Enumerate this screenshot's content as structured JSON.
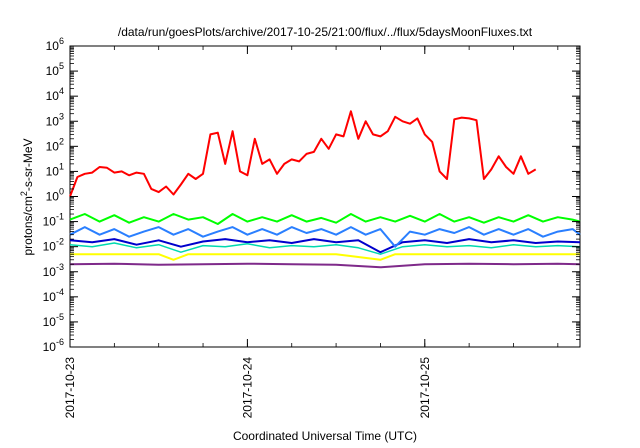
{
  "chart_data": {
    "type": "line",
    "title": "/data/run/goesPlots/archive/2017-10-25/21:00/flux/../flux/5daysMoonFluxes.txt",
    "xlabel": "Coordinated Universal Time (UTC)",
    "ylabel": {
      "prefix": "protons/cm",
      "sup": "2",
      "suffix": "-s-sr-MeV"
    },
    "x_scale": "time",
    "y_scale": "log",
    "xlim": [
      "2017-10-23T00:00",
      "2017-10-25T21:00"
    ],
    "ylim": [
      1e-06,
      1000000.0
    ],
    "grid": false,
    "legend": "none",
    "x_ticks": [
      "2017-10-23",
      "2017-10-24",
      "2017-10-25"
    ],
    "y_ticks": [
      {
        "value": 1e-06,
        "base": "10",
        "exp": "-6"
      },
      {
        "value": 1e-05,
        "base": "10",
        "exp": "-5"
      },
      {
        "value": 0.0001,
        "base": "10",
        "exp": "-4"
      },
      {
        "value": 0.001,
        "base": "10",
        "exp": "-3"
      },
      {
        "value": 0.01,
        "base": "10",
        "exp": "-2"
      },
      {
        "value": 0.1,
        "base": "10",
        "exp": "-1"
      },
      {
        "value": 1,
        "base": "10",
        "exp": "0"
      },
      {
        "value": 10,
        "base": "10",
        "exp": "1"
      },
      {
        "value": 100,
        "base": "10",
        "exp": "2"
      },
      {
        "value": 1000,
        "base": "10",
        "exp": "3"
      },
      {
        "value": 10000,
        "base": "10",
        "exp": "4"
      },
      {
        "value": 100000,
        "base": "10",
        "exp": "5"
      },
      {
        "value": 1000000,
        "base": "10",
        "exp": "6"
      }
    ],
    "series": [
      {
        "color": "#ff0000",
        "width": 2,
        "points": [
          [
            "2017-10-23T00:00",
            1
          ],
          [
            "2017-10-23T01:00",
            6
          ],
          [
            "2017-10-23T02:00",
            8
          ],
          [
            "2017-10-23T03:00",
            9
          ],
          [
            "2017-10-23T04:00",
            15
          ],
          [
            "2017-10-23T05:00",
            14
          ],
          [
            "2017-10-23T06:00",
            9
          ],
          [
            "2017-10-23T07:00",
            10
          ],
          [
            "2017-10-23T08:00",
            7
          ],
          [
            "2017-10-23T09:00",
            9
          ],
          [
            "2017-10-23T10:00",
            8
          ],
          [
            "2017-10-23T11:00",
            2
          ],
          [
            "2017-10-23T12:00",
            1.5
          ],
          [
            "2017-10-23T13:00",
            2.5
          ],
          [
            "2017-10-23T14:00",
            1.2
          ],
          [
            "2017-10-23T15:00",
            3
          ],
          [
            "2017-10-23T16:00",
            8
          ],
          [
            "2017-10-23T17:00",
            5
          ],
          [
            "2017-10-23T18:00",
            8
          ],
          [
            "2017-10-23T19:00",
            300
          ],
          [
            "2017-10-23T20:00",
            350
          ],
          [
            "2017-10-23T21:00",
            20
          ],
          [
            "2017-10-23T22:00",
            400
          ],
          [
            "2017-10-23T23:00",
            10
          ],
          [
            "2017-10-24T00:00",
            7
          ],
          [
            "2017-10-24T01:00",
            200
          ],
          [
            "2017-10-24T02:00",
            20
          ],
          [
            "2017-10-24T03:00",
            30
          ],
          [
            "2017-10-24T04:00",
            8
          ],
          [
            "2017-10-24T05:00",
            20
          ],
          [
            "2017-10-24T06:00",
            30
          ],
          [
            "2017-10-24T07:00",
            25
          ],
          [
            "2017-10-24T08:00",
            50
          ],
          [
            "2017-10-24T09:00",
            60
          ],
          [
            "2017-10-24T10:00",
            200
          ],
          [
            "2017-10-24T11:00",
            80
          ],
          [
            "2017-10-24T12:00",
            300
          ],
          [
            "2017-10-24T13:00",
            250
          ],
          [
            "2017-10-24T14:00",
            2500
          ],
          [
            "2017-10-24T15:00",
            200
          ],
          [
            "2017-10-24T16:00",
            1000
          ],
          [
            "2017-10-24T17:00",
            300
          ],
          [
            "2017-10-24T18:00",
            250
          ],
          [
            "2017-10-24T19:00",
            400
          ],
          [
            "2017-10-24T20:00",
            1500
          ],
          [
            "2017-10-24T21:00",
            1000
          ],
          [
            "2017-10-24T22:00",
            800
          ],
          [
            "2017-10-24T23:00",
            1300
          ],
          [
            "2017-10-25T00:00",
            300
          ],
          [
            "2017-10-25T01:00",
            150
          ],
          [
            "2017-10-25T02:00",
            10
          ],
          [
            "2017-10-25T03:00",
            5
          ],
          [
            "2017-10-25T04:00",
            1200
          ],
          [
            "2017-10-25T05:00",
            1400
          ],
          [
            "2017-10-25T06:00",
            1300
          ],
          [
            "2017-10-25T07:00",
            1100
          ],
          [
            "2017-10-25T08:00",
            5
          ],
          [
            "2017-10-25T09:00",
            12
          ],
          [
            "2017-10-25T10:00",
            40
          ],
          [
            "2017-10-25T11:00",
            15
          ],
          [
            "2017-10-25T12:00",
            8
          ],
          [
            "2017-10-25T13:00",
            40
          ],
          [
            "2017-10-25T14:00",
            8
          ],
          [
            "2017-10-25T15:00",
            12
          ]
        ]
      },
      {
        "color": "#00ff00",
        "width": 2,
        "points": [
          [
            "2017-10-23T00:00",
            0.12
          ],
          [
            "2017-10-23T02:00",
            0.2
          ],
          [
            "2017-10-23T04:00",
            0.1
          ],
          [
            "2017-10-23T06:00",
            0.18
          ],
          [
            "2017-10-23T08:00",
            0.09
          ],
          [
            "2017-10-23T10:00",
            0.15
          ],
          [
            "2017-10-23T12:00",
            0.1
          ],
          [
            "2017-10-23T14:00",
            0.2
          ],
          [
            "2017-10-23T16:00",
            0.12
          ],
          [
            "2017-10-23T18:00",
            0.15
          ],
          [
            "2017-10-23T20:00",
            0.08
          ],
          [
            "2017-10-23T22:00",
            0.2
          ],
          [
            "2017-10-24T00:00",
            0.1
          ],
          [
            "2017-10-24T02:00",
            0.15
          ],
          [
            "2017-10-24T04:00",
            0.1
          ],
          [
            "2017-10-24T06:00",
            0.18
          ],
          [
            "2017-10-24T08:00",
            0.1
          ],
          [
            "2017-10-24T10:00",
            0.14
          ],
          [
            "2017-10-24T12:00",
            0.09
          ],
          [
            "2017-10-24T14:00",
            0.2
          ],
          [
            "2017-10-24T16:00",
            0.1
          ],
          [
            "2017-10-24T18:00",
            0.15
          ],
          [
            "2017-10-24T20:00",
            0.1
          ],
          [
            "2017-10-24T22:00",
            0.17
          ],
          [
            "2017-10-25T00:00",
            0.1
          ],
          [
            "2017-10-25T02:00",
            0.2
          ],
          [
            "2017-10-25T04:00",
            0.1
          ],
          [
            "2017-10-25T06:00",
            0.15
          ],
          [
            "2017-10-25T08:00",
            0.09
          ],
          [
            "2017-10-25T10:00",
            0.15
          ],
          [
            "2017-10-25T12:00",
            0.1
          ],
          [
            "2017-10-25T14:00",
            0.18
          ],
          [
            "2017-10-25T16:00",
            0.1
          ],
          [
            "2017-10-25T18:00",
            0.15
          ],
          [
            "2017-10-25T20:00",
            0.12
          ],
          [
            "2017-10-25T21:00",
            0.1
          ]
        ]
      },
      {
        "color": "#00d9b0",
        "width": 1.5,
        "points": [
          [
            "2017-10-23T00:00",
            0.012
          ],
          [
            "2017-10-23T03:00",
            0.01
          ],
          [
            "2017-10-23T06:00",
            0.014
          ],
          [
            "2017-10-23T09:00",
            0.009
          ],
          [
            "2017-10-23T12:00",
            0.012
          ],
          [
            "2017-10-23T15:00",
            0.006
          ],
          [
            "2017-10-23T18:00",
            0.011
          ],
          [
            "2017-10-23T21:00",
            0.01
          ],
          [
            "2017-10-24T00:00",
            0.013
          ],
          [
            "2017-10-24T03:00",
            0.009
          ],
          [
            "2017-10-24T06:00",
            0.011
          ],
          [
            "2017-10-24T09:00",
            0.01
          ],
          [
            "2017-10-24T12:00",
            0.012
          ],
          [
            "2017-10-24T15:00",
            0.009
          ],
          [
            "2017-10-24T18:00",
            0.005
          ],
          [
            "2017-10-24T21:00",
            0.01
          ],
          [
            "2017-10-25T00:00",
            0.012
          ],
          [
            "2017-10-25T03:00",
            0.01
          ],
          [
            "2017-10-25T06:00",
            0.011
          ],
          [
            "2017-10-25T09:00",
            0.009
          ],
          [
            "2017-10-25T12:00",
            0.012
          ],
          [
            "2017-10-25T15:00",
            0.01
          ],
          [
            "2017-10-25T18:00",
            0.011
          ],
          [
            "2017-10-25T21:00",
            0.01
          ]
        ]
      },
      {
        "color": "#2a7fff",
        "width": 2,
        "points": [
          [
            "2017-10-23T00:00",
            0.03
          ],
          [
            "2017-10-23T02:00",
            0.06
          ],
          [
            "2017-10-23T04:00",
            0.03
          ],
          [
            "2017-10-23T06:00",
            0.05
          ],
          [
            "2017-10-23T08:00",
            0.025
          ],
          [
            "2017-10-23T10:00",
            0.04
          ],
          [
            "2017-10-23T12:00",
            0.06
          ],
          [
            "2017-10-23T14:00",
            0.03
          ],
          [
            "2017-10-23T16:00",
            0.05
          ],
          [
            "2017-10-23T18:00",
            0.025
          ],
          [
            "2017-10-23T20:00",
            0.04
          ],
          [
            "2017-10-23T22:00",
            0.06
          ],
          [
            "2017-10-24T00:00",
            0.03
          ],
          [
            "2017-10-24T02:00",
            0.05
          ],
          [
            "2017-10-24T04:00",
            0.03
          ],
          [
            "2017-10-24T06:00",
            0.06
          ],
          [
            "2017-10-24T08:00",
            0.035
          ],
          [
            "2017-10-24T10:00",
            0.05
          ],
          [
            "2017-10-24T12:00",
            0.03
          ],
          [
            "2017-10-24T14:00",
            0.06
          ],
          [
            "2017-10-24T16:00",
            0.03
          ],
          [
            "2017-10-24T18:00",
            0.05
          ],
          [
            "2017-10-24T20:00",
            0.01
          ],
          [
            "2017-10-24T22:00",
            0.04
          ],
          [
            "2017-10-25T00:00",
            0.03
          ],
          [
            "2017-10-25T02:00",
            0.05
          ],
          [
            "2017-10-25T04:00",
            0.035
          ],
          [
            "2017-10-25T06:00",
            0.06
          ],
          [
            "2017-10-25T08:00",
            0.03
          ],
          [
            "2017-10-25T10:00",
            0.05
          ],
          [
            "2017-10-25T12:00",
            0.03
          ],
          [
            "2017-10-25T14:00",
            0.05
          ],
          [
            "2017-10-25T16:00",
            0.025
          ],
          [
            "2017-10-25T18:00",
            0.04
          ],
          [
            "2017-10-25T20:00",
            0.05
          ],
          [
            "2017-10-25T21:00",
            0.03
          ]
        ]
      },
      {
        "color": "#0000cc",
        "width": 2,
        "points": [
          [
            "2017-10-23T00:00",
            0.018
          ],
          [
            "2017-10-23T03:00",
            0.015
          ],
          [
            "2017-10-23T06:00",
            0.02
          ],
          [
            "2017-10-23T09:00",
            0.012
          ],
          [
            "2017-10-23T12:00",
            0.018
          ],
          [
            "2017-10-23T15:00",
            0.01
          ],
          [
            "2017-10-23T18:00",
            0.016
          ],
          [
            "2017-10-23T21:00",
            0.02
          ],
          [
            "2017-10-24T00:00",
            0.015
          ],
          [
            "2017-10-24T03:00",
            0.018
          ],
          [
            "2017-10-24T06:00",
            0.014
          ],
          [
            "2017-10-24T09:00",
            0.02
          ],
          [
            "2017-10-24T12:00",
            0.015
          ],
          [
            "2017-10-24T15:00",
            0.018
          ],
          [
            "2017-10-24T18:00",
            0.006
          ],
          [
            "2017-10-24T21:00",
            0.015
          ],
          [
            "2017-10-25T00:00",
            0.018
          ],
          [
            "2017-10-25T03:00",
            0.014
          ],
          [
            "2017-10-25T06:00",
            0.02
          ],
          [
            "2017-10-25T09:00",
            0.015
          ],
          [
            "2017-10-25T12:00",
            0.018
          ],
          [
            "2017-10-25T15:00",
            0.014
          ],
          [
            "2017-10-25T18:00",
            0.016
          ],
          [
            "2017-10-25T21:00",
            0.015
          ]
        ]
      },
      {
        "color": "#ffff00",
        "width": 2,
        "points": [
          [
            "2017-10-23T00:00",
            0.005
          ],
          [
            "2017-10-23T06:00",
            0.005
          ],
          [
            "2017-10-23T12:00",
            0.005
          ],
          [
            "2017-10-23T14:00",
            0.003
          ],
          [
            "2017-10-23T16:00",
            0.005
          ],
          [
            "2017-10-24T00:00",
            0.005
          ],
          [
            "2017-10-24T06:00",
            0.005
          ],
          [
            "2017-10-24T12:00",
            0.005
          ],
          [
            "2017-10-24T18:00",
            0.003
          ],
          [
            "2017-10-24T20:00",
            0.005
          ],
          [
            "2017-10-25T00:00",
            0.005
          ],
          [
            "2017-10-25T06:00",
            0.005
          ],
          [
            "2017-10-25T12:00",
            0.005
          ],
          [
            "2017-10-25T18:00",
            0.005
          ],
          [
            "2017-10-25T21:00",
            0.005
          ]
        ]
      },
      {
        "color": "#7f2a8a",
        "width": 2,
        "points": [
          [
            "2017-10-23T00:00",
            0.002
          ],
          [
            "2017-10-23T06:00",
            0.0021
          ],
          [
            "2017-10-23T12:00",
            0.0019
          ],
          [
            "2017-10-23T18:00",
            0.002
          ],
          [
            "2017-10-24T00:00",
            0.0021
          ],
          [
            "2017-10-24T06:00",
            0.002
          ],
          [
            "2017-10-24T12:00",
            0.0019
          ],
          [
            "2017-10-24T18:00",
            0.0015
          ],
          [
            "2017-10-25T00:00",
            0.002
          ],
          [
            "2017-10-25T06:00",
            0.0021
          ],
          [
            "2017-10-25T12:00",
            0.002
          ],
          [
            "2017-10-25T18:00",
            0.0021
          ],
          [
            "2017-10-25T21:00",
            0.002
          ]
        ]
      }
    ]
  }
}
